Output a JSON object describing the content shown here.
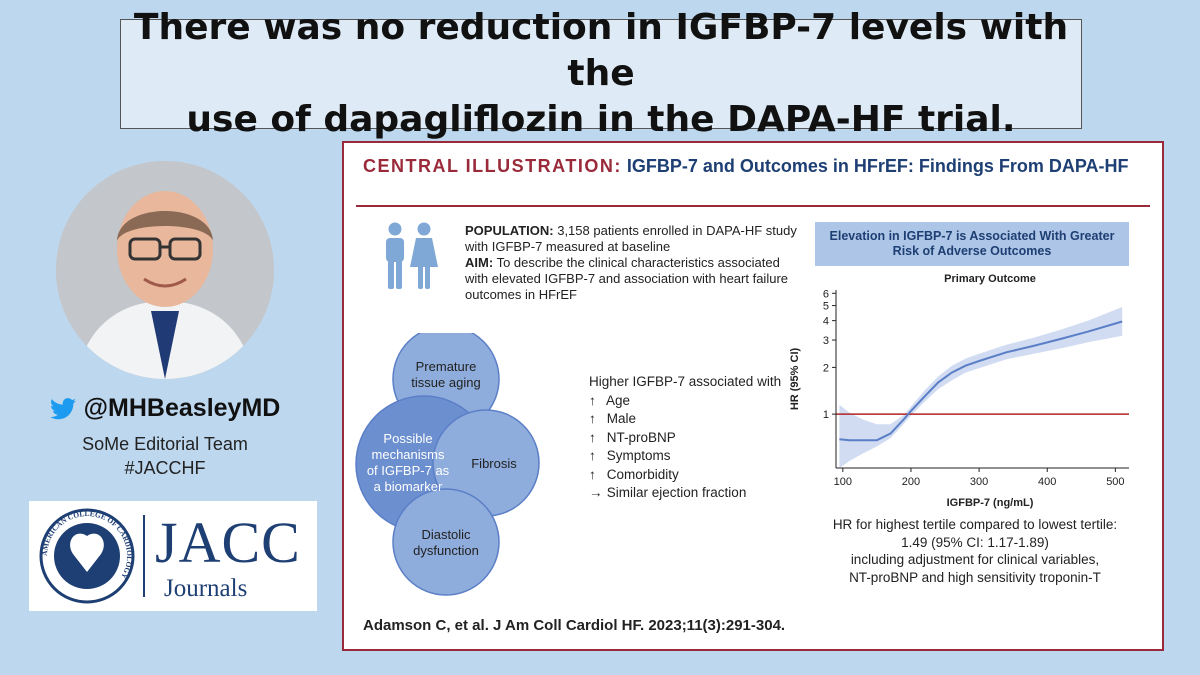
{
  "headline": {
    "line1": "There was no reduction in IGFBP-7 levels with the",
    "line2": "use of dapagliflozin in the DAPA-HF trial."
  },
  "profile": {
    "handle": "@MHBeasleyMD",
    "handle_icon": "twitter-bird-icon",
    "team_line1": "SoMe Editorial Team",
    "team_line2": "#JACCHF"
  },
  "logo": {
    "title": "JACC",
    "subtitle": "Journals",
    "seal_text": "AMERICAN COLLEGE OF CARDIOLOGY"
  },
  "illustration": {
    "label": "CENTRAL ILLUSTRATION:",
    "title": "IGFBP-7 and Outcomes in HFrEF: Findings From DAPA-HF",
    "population_label": "POPULATION:",
    "population_text": "3,158 patients enrolled in DAPA-HF study with IGFBP-7 measured at baseline",
    "aim_label": "AIM:",
    "aim_text": "To describe the clinical characteristics associated with elevated IGFBP-7 and association with heart failure outcomes in HFrEF",
    "mechanisms": {
      "center": [
        "Possible",
        "mechanisms",
        "of IGFBP-7 as",
        "a biomarker"
      ],
      "top": [
        "Premature",
        "tissue aging"
      ],
      "right": [
        "Fibrosis"
      ],
      "bottom": [
        "Diastolic",
        "dysfunction"
      ]
    },
    "associations_title": "Higher IGFBP-7 associated with",
    "associations": [
      {
        "arrow": "↑",
        "text": "Age"
      },
      {
        "arrow": "↑",
        "text": "Male"
      },
      {
        "arrow": "↑",
        "text": "NT-proBNP"
      },
      {
        "arrow": "↑",
        "text": "Symptoms"
      },
      {
        "arrow": "↑",
        "text": "Comorbidity"
      },
      {
        "arrow": "→",
        "text": "Similar ejection fraction"
      }
    ],
    "chart_header_line1": "Elevation in IGFBP-7 is Associated With Greater",
    "chart_header_line2": "Risk of Adverse Outcomes",
    "caption": {
      "line1": "HR for highest tertile compared to lowest tertile:",
      "line2": "1.49 (95% CI: 1.17-1.89)",
      "line3": "including adjustment for clinical variables,",
      "line4": "NT-proBNP and high sensitivity troponin-T"
    },
    "citation": "Adamson C, et al. J Am Coll Cardiol HF. 2023;11(3):291-304."
  },
  "colors": {
    "background": "#bdd7ee",
    "headline_box": "#deebf7",
    "panel_border": "#9a2a3a",
    "navy": "#1e3f73",
    "curve": "#5b7fc7",
    "band": "#c9d6f0",
    "reference_line": "#b22222",
    "bubble": "#8eacdc",
    "bubble_center": "#6c8fd0"
  },
  "chart_data": {
    "type": "line",
    "title": "Primary Outcome",
    "xlabel": "IGFBP-7 (ng/mL)",
    "ylabel": "HR (95% CI)",
    "xlim": [
      90,
      520
    ],
    "ylim": [
      0.45,
      6.3
    ],
    "yscale": "log",
    "xticks": [
      100,
      200,
      300,
      400,
      500
    ],
    "yticks": [
      1,
      2,
      3,
      4,
      5,
      6
    ],
    "reference_line_y": 1,
    "grid": false,
    "series": [
      {
        "x": [
          95,
          110,
          130,
          150,
          170,
          190,
          200,
          220,
          240,
          260,
          280,
          300,
          340,
          380,
          420,
          460,
          510
        ],
        "y": [
          0.69,
          0.68,
          0.68,
          0.68,
          0.75,
          0.93,
          1.05,
          1.3,
          1.6,
          1.85,
          2.05,
          2.2,
          2.5,
          2.75,
          3.05,
          3.4,
          3.95
        ],
        "lower": [
          0.45,
          0.5,
          0.56,
          0.62,
          0.7,
          0.87,
          0.98,
          1.2,
          1.45,
          1.65,
          1.85,
          1.98,
          2.25,
          2.45,
          2.65,
          2.9,
          3.2
        ],
        "upper": [
          1.15,
          1.02,
          0.92,
          0.86,
          0.86,
          0.99,
          1.12,
          1.42,
          1.75,
          2.05,
          2.28,
          2.45,
          2.8,
          3.1,
          3.5,
          4.0,
          4.9
        ]
      }
    ]
  }
}
